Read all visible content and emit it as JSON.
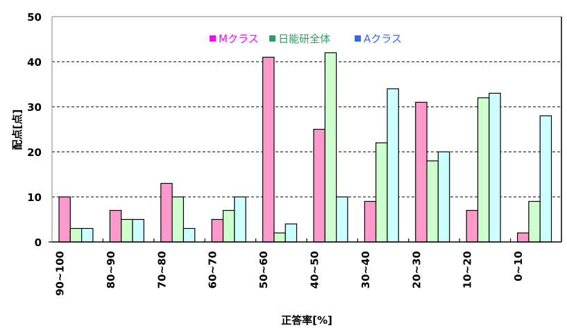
{
  "chart_data": {
    "type": "bar",
    "title": "",
    "xlabel": "正答率[%]",
    "ylabel": "配点[点]",
    "ylim": [
      0,
      50
    ],
    "yticks": [
      0,
      10,
      20,
      30,
      40,
      50
    ],
    "grid": "horizontal dashed",
    "legend_position": "top-center inside plot",
    "categories": [
      "90~100",
      "80~90",
      "70~80",
      "60~70",
      "50~60",
      "40~50",
      "30~40",
      "20~30",
      "10~20",
      "0~10"
    ],
    "series": [
      {
        "name": "Mクラス",
        "values": [
          10,
          7,
          13,
          5,
          41,
          25,
          9,
          31,
          7,
          2
        ],
        "fill": "#FF99CC",
        "legend_color": "#FF00FF"
      },
      {
        "name": "日能研全体",
        "values": [
          3,
          5,
          10,
          7,
          2,
          42,
          22,
          18,
          32,
          9
        ],
        "fill": "#CCFFCC",
        "legend_color": "#339966"
      },
      {
        "name": "Aクラス",
        "values": [
          3,
          5,
          3,
          10,
          4,
          10,
          34,
          20,
          33,
          28
        ],
        "fill": "#CCFFFF",
        "legend_color": "#3366FF"
      }
    ]
  }
}
